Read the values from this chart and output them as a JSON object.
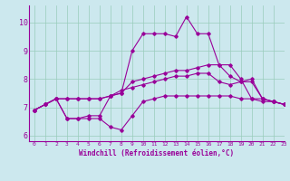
{
  "background_color": "#cce8ee",
  "grid_color": "#99ccbb",
  "line_color": "#990099",
  "xlim": [
    -0.5,
    23
  ],
  "ylim": [
    5.8,
    10.6
  ],
  "xlabel": "Windchill (Refroidissement éolien,°C)",
  "yticks": [
    6,
    7,
    8,
    9,
    10
  ],
  "xticks": [
    0,
    1,
    2,
    3,
    4,
    5,
    6,
    7,
    8,
    9,
    10,
    11,
    12,
    13,
    14,
    15,
    16,
    17,
    18,
    19,
    20,
    21,
    22,
    23
  ],
  "series": [
    [
      6.9,
      7.1,
      7.3,
      6.6,
      6.6,
      6.6,
      6.6,
      6.3,
      6.2,
      6.7,
      7.2,
      7.3,
      7.4,
      7.4,
      7.4,
      7.4,
      7.4,
      7.4,
      7.4,
      7.3,
      7.3,
      7.2,
      7.2,
      7.1
    ],
    [
      6.9,
      7.1,
      7.3,
      6.6,
      6.6,
      6.7,
      6.7,
      7.4,
      7.5,
      9.0,
      9.6,
      9.6,
      9.6,
      9.5,
      10.2,
      9.6,
      9.6,
      8.5,
      8.5,
      8.0,
      7.3,
      7.3,
      7.2,
      7.1
    ],
    [
      6.9,
      7.1,
      7.3,
      7.3,
      7.3,
      7.3,
      7.3,
      7.4,
      7.5,
      7.9,
      8.0,
      8.1,
      8.2,
      8.3,
      8.3,
      8.4,
      8.5,
      8.5,
      8.1,
      7.9,
      7.9,
      7.3,
      7.2,
      7.1
    ],
    [
      6.9,
      7.1,
      7.3,
      7.3,
      7.3,
      7.3,
      7.3,
      7.4,
      7.6,
      7.7,
      7.8,
      7.9,
      8.0,
      8.1,
      8.1,
      8.2,
      8.2,
      7.9,
      7.8,
      7.9,
      8.0,
      7.3,
      7.2,
      7.1
    ]
  ]
}
